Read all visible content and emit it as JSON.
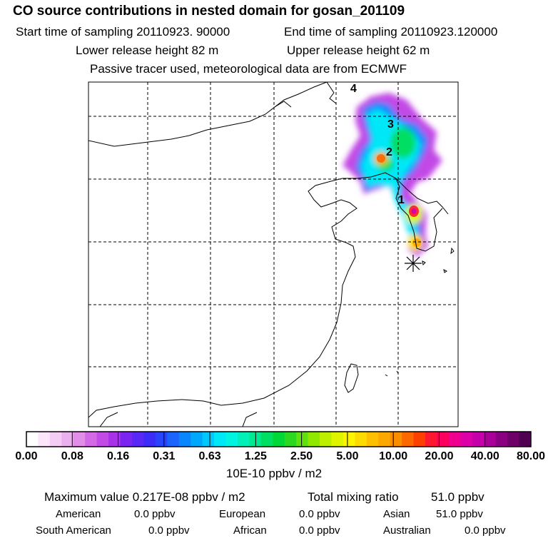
{
  "header": {
    "title": "CO  source contributions in nested domain for gosan_201109",
    "start_label": "Start time of sampling 20110923. 90000",
    "end_label": "End time of sampling 20110923.120000",
    "lower_label": "Lower release height   82 m",
    "upper_label": "Upper release height   62 m",
    "tracer_label": "Passive tracer used, meteorological data are from ECMWF"
  },
  "map": {
    "trajectory_markers": [
      "1",
      "2",
      "3",
      "4"
    ],
    "receptor_symbol": "✳"
  },
  "legend": {
    "ticks": [
      "0.00",
      "0.08",
      "0.16",
      "0.31",
      "0.63",
      "1.25",
      "2.50",
      "5.00",
      "10.00",
      "20.00",
      "40.00",
      "80.00"
    ],
    "colors": [
      "#ffffff",
      "#fbe6fb",
      "#f4ccf4",
      "#eab0f0",
      "#e08ee8",
      "#d26ae6",
      "#c24ae6",
      "#a932e8",
      "#7a26f0",
      "#5a28f4",
      "#3c2cf8",
      "#2a44fc",
      "#1c64fc",
      "#0a86fc",
      "#00a8fc",
      "#00c8fc",
      "#00e8f8",
      "#00f4e0",
      "#00f0b8",
      "#00e890",
      "#00de64",
      "#00d838",
      "#2cd820",
      "#60e010",
      "#90e800",
      "#bcf000",
      "#e0f400",
      "#fcf400",
      "#fcdc00",
      "#fcc000",
      "#fca800",
      "#fc8c00",
      "#fc6800",
      "#fc4000",
      "#fc1830",
      "#fc0060",
      "#f00090",
      "#dc00a8",
      "#c400a8",
      "#a80098",
      "#8a0080",
      "#6e0068",
      "#500050"
    ],
    "units": "10E-10 ppbv / m2"
  },
  "summary": {
    "max_label": "Maximum value  0.217E-08 ppbv / m2",
    "total_label": "Total mixing ratio",
    "total_value": "51.0 ppbv",
    "regions": [
      {
        "name": "American",
        "value": "0.0 ppbv"
      },
      {
        "name": "European",
        "value": "0.0 ppbv"
      },
      {
        "name": "Asian",
        "value": "51.0 ppbv"
      },
      {
        "name": "South American",
        "value": "0.0 ppbv"
      },
      {
        "name": "African",
        "value": "0.0 ppbv"
      },
      {
        "name": "Australian",
        "value": "0.0 ppbv"
      }
    ]
  }
}
